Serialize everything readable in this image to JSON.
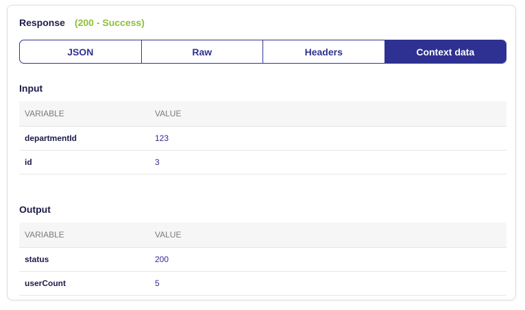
{
  "response": {
    "title": "Response",
    "status": "(200 - Success)"
  },
  "tabs": [
    {
      "label": "JSON"
    },
    {
      "label": "Raw"
    },
    {
      "label": "Headers"
    },
    {
      "label": "Context data",
      "active": true
    }
  ],
  "input": {
    "title": "Input",
    "columns": [
      "VARIABLE",
      "VALUE"
    ],
    "rows": [
      [
        "departmentId",
        "123"
      ],
      [
        "id",
        "3"
      ]
    ]
  },
  "output": {
    "title": "Output",
    "columns": [
      "VARIABLE",
      "VALUE"
    ],
    "rows": [
      [
        "status",
        "200"
      ],
      [
        "userCount",
        "5"
      ]
    ]
  },
  "colors": {
    "accent": "#2e3192",
    "success": "#8cc133"
  }
}
